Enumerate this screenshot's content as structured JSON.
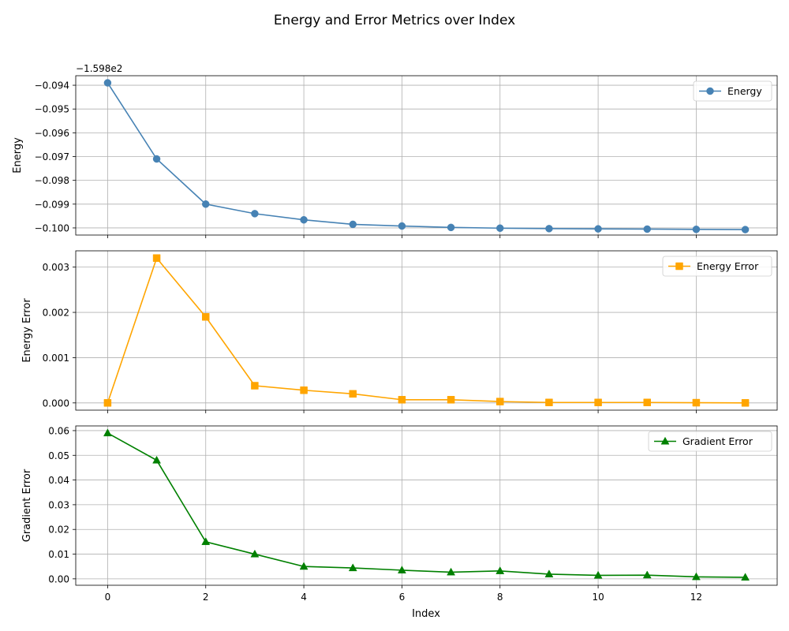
{
  "figure": {
    "title": "Energy and Error Metrics over Index",
    "xlabel": "Index"
  },
  "chart_data": [
    {
      "type": "line",
      "ylabel": "Energy",
      "offset_label": "−1.598e2",
      "legend_position": "top-right",
      "marker": "circle",
      "color": "#4682b4",
      "x": [
        0,
        1,
        2,
        3,
        4,
        5,
        6,
        7,
        8,
        9,
        10,
        11,
        12,
        13
      ],
      "series": [
        {
          "name": "Energy",
          "values": [
            -0.0939,
            -0.0971,
            -0.099,
            -0.0994,
            -0.09966,
            -0.09985,
            -0.09992,
            -0.09998,
            -0.10001,
            -0.10003,
            -0.10004,
            -0.10005,
            -0.10006,
            -0.10007
          ]
        }
      ],
      "xlim": [
        -0.65,
        13.65
      ],
      "ylim": [
        -0.1003,
        -0.0936
      ],
      "xticks": [
        0,
        2,
        4,
        6,
        8,
        10,
        12
      ],
      "yticks": [
        -0.094,
        -0.095,
        -0.096,
        -0.097,
        -0.098,
        -0.099,
        -0.1
      ],
      "ytick_labels": [
        "−0.094",
        "−0.095",
        "−0.096",
        "−0.097",
        "−0.098",
        "−0.099",
        "−0.100"
      ],
      "grid": true
    },
    {
      "type": "line",
      "ylabel": "Energy Error",
      "legend_position": "top-right",
      "marker": "square",
      "color": "#ffa500",
      "x": [
        0,
        1,
        2,
        3,
        4,
        5,
        6,
        7,
        8,
        9,
        10,
        11,
        12,
        13
      ],
      "series": [
        {
          "name": "Energy Error",
          "values": [
            0.0,
            0.0032,
            0.0019,
            0.00038,
            0.00028,
            0.0002,
            7e-05,
            7e-05,
            3e-05,
            1e-05,
            1e-05,
            1e-05,
            5e-06,
            0.0
          ]
        }
      ],
      "xlim": [
        -0.65,
        13.65
      ],
      "ylim": [
        -0.00016,
        0.00336
      ],
      "xticks": [
        0,
        2,
        4,
        6,
        8,
        10,
        12
      ],
      "yticks": [
        0.0,
        0.001,
        0.002,
        0.003
      ],
      "ytick_labels": [
        "0.000",
        "0.001",
        "0.002",
        "0.003"
      ],
      "grid": true
    },
    {
      "type": "line",
      "ylabel": "Gradient Error",
      "legend_position": "top-right",
      "marker": "triangle",
      "color": "#008000",
      "x": [
        0,
        1,
        2,
        3,
        4,
        5,
        6,
        7,
        8,
        9,
        10,
        11,
        12,
        13
      ],
      "series": [
        {
          "name": "Gradient Error",
          "values": [
            0.059,
            0.048,
            0.015,
            0.01,
            0.005,
            0.0044,
            0.0035,
            0.0027,
            0.0032,
            0.0019,
            0.0014,
            0.0015,
            0.0008,
            0.0006
          ]
        }
      ],
      "xlim": [
        -0.65,
        13.65
      ],
      "ylim": [
        -0.0026,
        0.0619
      ],
      "xticks": [
        0,
        2,
        4,
        6,
        8,
        10,
        12
      ],
      "xtick_labels": [
        "0",
        "2",
        "4",
        "6",
        "8",
        "10",
        "12"
      ],
      "yticks": [
        0.0,
        0.01,
        0.02,
        0.03,
        0.04,
        0.05,
        0.06
      ],
      "ytick_labels": [
        "0.00",
        "0.01",
        "0.02",
        "0.03",
        "0.04",
        "0.05",
        "0.06"
      ],
      "grid": true
    }
  ]
}
